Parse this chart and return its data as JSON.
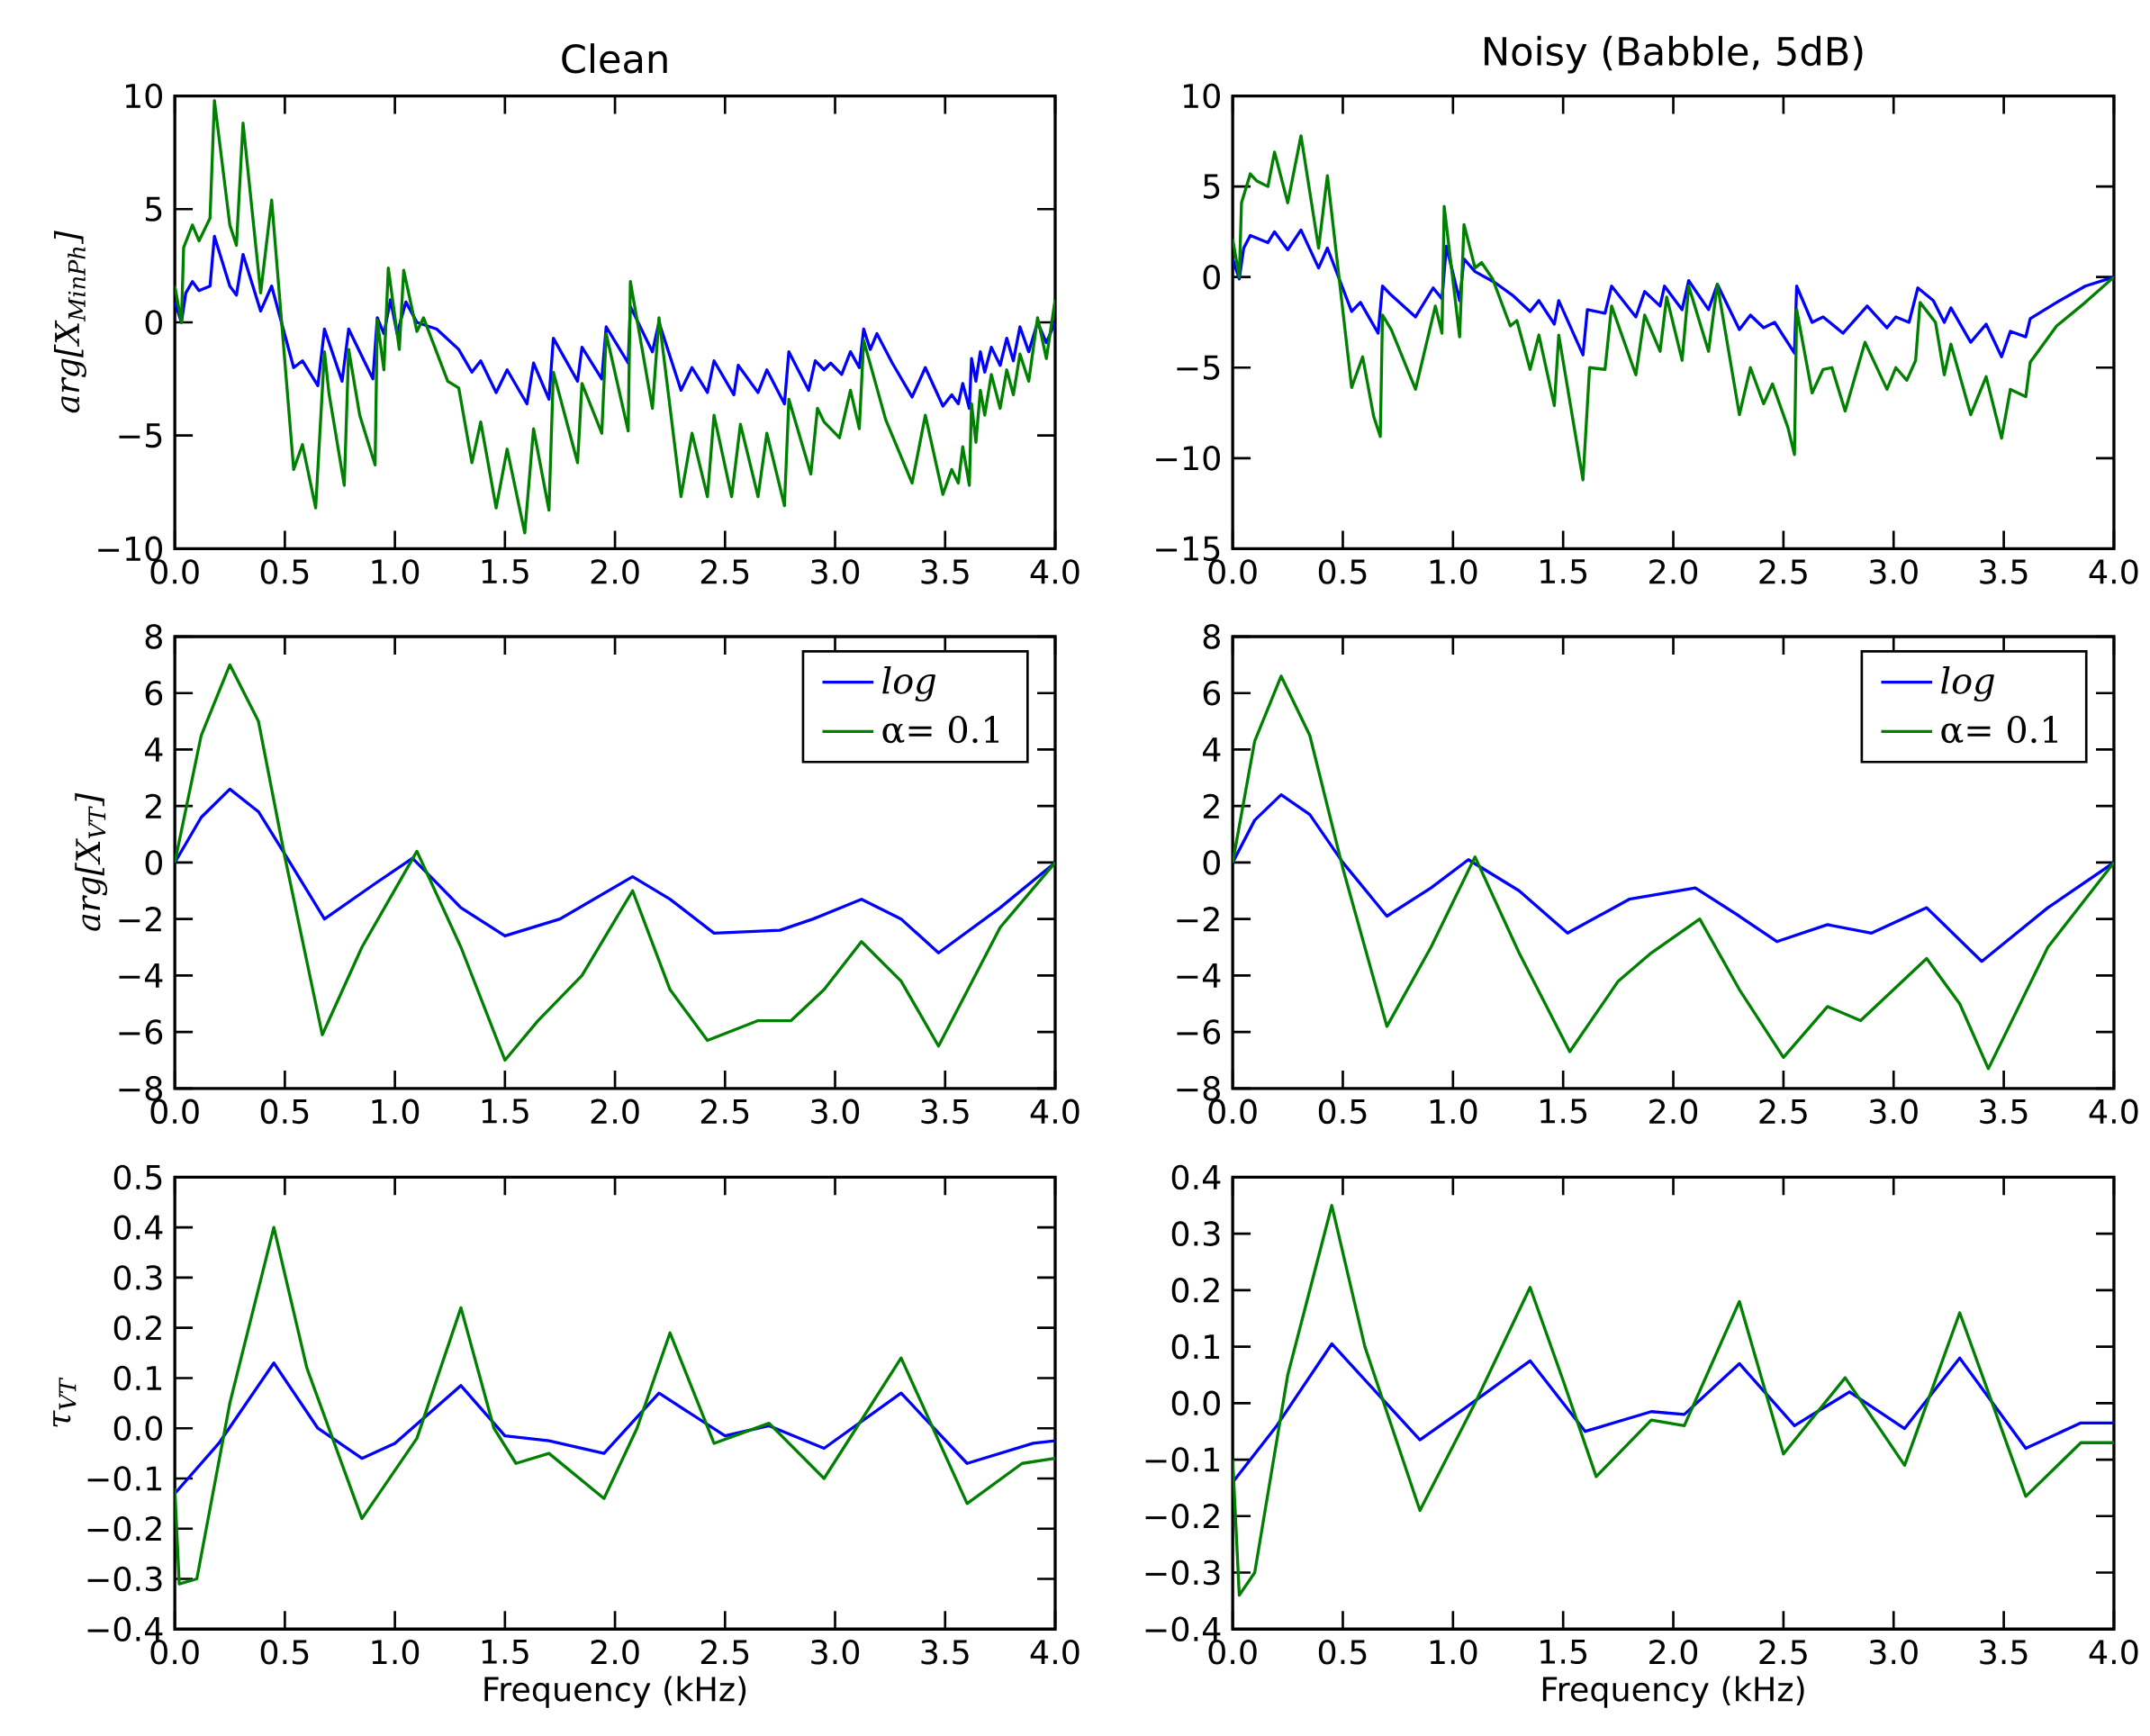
{
  "chart_data": [
    {
      "type": "line",
      "title": "Clean",
      "ylabel": "arg[X$_{MinPh}$]",
      "xlim": [
        0,
        4
      ],
      "ylim": [
        -10,
        10
      ],
      "xticks": [
        {
          "value": 0,
          "label": "0.0"
        },
        {
          "value": 0.5,
          "label": "0.5"
        },
        {
          "value": 1,
          "label": "1.0"
        },
        {
          "value": 1.5,
          "label": "1.5"
        },
        {
          "value": 2,
          "label": "2.0"
        },
        {
          "value": 2.5,
          "label": "2.5"
        },
        {
          "value": 3,
          "label": "3.0"
        },
        {
          "value": 3.5,
          "label": "3.5"
        },
        {
          "value": 4,
          "label": "4.0"
        }
      ],
      "yticks": [
        {
          "value": -10,
          "label": "−10"
        },
        {
          "value": -5,
          "label": "−5"
        },
        {
          "value": 0,
          "label": "0"
        },
        {
          "value": 5,
          "label": "5"
        },
        {
          "value": 10,
          "label": "10"
        }
      ],
      "series": [
        {
          "color": "#0000ff",
          "x": [
            0,
            0.03,
            0.05,
            0.08,
            0.11,
            0.16,
            0.18,
            0.25,
            0.28,
            0.31,
            0.39,
            0.44,
            0.54,
            0.58,
            0.65,
            0.68,
            0.76,
            0.79,
            0.9,
            0.92,
            0.95,
            0.98,
            1.01,
            1.05,
            1.1,
            1.19,
            1.29,
            1.35,
            1.39,
            1.46,
            1.51,
            1.6,
            1.63,
            1.7,
            1.72,
            1.83,
            1.85,
            1.94,
            1.96,
            2.06,
            2.07,
            2.17,
            2.2,
            2.3,
            2.35,
            2.42,
            2.45,
            2.54,
            2.56,
            2.65,
            2.69,
            2.77,
            2.79,
            2.88,
            2.91,
            2.95,
            2.98,
            3.03,
            3.07,
            3.11,
            3.13,
            3.16,
            3.19,
            3.26,
            3.35,
            3.41,
            3.49,
            3.53,
            3.56,
            3.58,
            3.61,
            3.62,
            3.64,
            3.66,
            3.68,
            3.71,
            3.75,
            3.78,
            3.81,
            3.84,
            3.88,
            3.92,
            3.96,
            4.0
          ],
          "values": [
            0.9,
            0,
            1.3,
            1.8,
            1.4,
            1.6,
            3.8,
            1.6,
            1.2,
            3.0,
            0.5,
            1.6,
            -2.0,
            -1.7,
            -2.8,
            -0.3,
            -2.6,
            -0.3,
            -2.5,
            0.2,
            -0.5,
            1.0,
            -0.5,
            0.9,
            0,
            -0.3,
            -1.2,
            -2.2,
            -1.7,
            -3.1,
            -2.1,
            -3.6,
            -1.8,
            -3.4,
            -0.7,
            -2.6,
            -1.1,
            -2.5,
            -0.2,
            -1.8,
            0.7,
            -1.3,
            0,
            -3.0,
            -2.0,
            -3.1,
            -1.7,
            -3.2,
            -1.9,
            -3.1,
            -2.1,
            -3.6,
            -1.3,
            -3.0,
            -1.7,
            -2.1,
            -1.8,
            -2.3,
            -1.3,
            -2.0,
            -0.3,
            -1.2,
            -0.5,
            -1.8,
            -3.3,
            -2.0,
            -3.7,
            -3.2,
            -3.6,
            -2.7,
            -3.8,
            -1.6,
            -2.6,
            -1.3,
            -2.2,
            -1.1,
            -1.9,
            -0.7,
            -1.7,
            -0.2,
            -1.3,
            0,
            -0.9,
            0
          ]
        },
        {
          "color": "#008000",
          "x": [
            0,
            0.03,
            0.04,
            0.08,
            0.11,
            0.14,
            0.16,
            0.18,
            0.25,
            0.28,
            0.31,
            0.39,
            0.44,
            0.54,
            0.58,
            0.64,
            0.68,
            0.7,
            0.77,
            0.79,
            0.84,
            0.91,
            0.92,
            0.95,
            0.97,
            1.02,
            1.04,
            1.1,
            1.13,
            1.24,
            1.29,
            1.35,
            1.39,
            1.46,
            1.51,
            1.59,
            1.63,
            1.7,
            1.72,
            1.83,
            1.85,
            1.94,
            1.96,
            2.06,
            2.07,
            2.17,
            2.2,
            2.3,
            2.35,
            2.42,
            2.45,
            2.53,
            2.57,
            2.65,
            2.69,
            2.77,
            2.79,
            2.89,
            2.92,
            2.95,
            3.02,
            3.07,
            3.11,
            3.13,
            3.23,
            3.35,
            3.41,
            3.49,
            3.53,
            3.56,
            3.58,
            3.61,
            3.62,
            3.64,
            3.66,
            3.68,
            3.71,
            3.75,
            3.78,
            3.81,
            3.84,
            3.88,
            3.92,
            3.96,
            4.0
          ],
          "values": [
            1.6,
            0,
            3.3,
            4.3,
            3.6,
            4.2,
            4.6,
            9.8,
            4.3,
            3.4,
            8.8,
            1.3,
            5.4,
            -6.5,
            -5.4,
            -8.2,
            -1.3,
            -3.1,
            -7.2,
            -1.2,
            -4.1,
            -6.3,
            0.1,
            -2.1,
            2.4,
            -1.2,
            2.3,
            -0.4,
            0.2,
            -2.6,
            -2.9,
            -6.2,
            -4.4,
            -8.2,
            -5.6,
            -9.3,
            -4.7,
            -8.3,
            -2.2,
            -6.2,
            -2.7,
            -4.9,
            -0.5,
            -4.8,
            1.8,
            -3.8,
            0.2,
            -7.7,
            -4.9,
            -7.7,
            -4.1,
            -7.7,
            -4.5,
            -7.7,
            -4.9,
            -8.1,
            -3.4,
            -6.7,
            -3.8,
            -4.4,
            -5.1,
            -3.0,
            -4.7,
            -0.8,
            -4.3,
            -7.1,
            -4.1,
            -7.6,
            -6.5,
            -7.1,
            -5.5,
            -7.2,
            -3.6,
            -5.3,
            -3.0,
            -4.1,
            -2.3,
            -3.8,
            -2.1,
            -3.2,
            -1.4,
            -2.6,
            0.2,
            -1.6,
            1.0
          ]
        }
      ]
    },
    {
      "type": "line",
      "title": "Noisy (Babble, 5dB)",
      "xlim": [
        0,
        4
      ],
      "ylim": [
        -15,
        10
      ],
      "xticks": [
        {
          "value": 0,
          "label": "0.0"
        },
        {
          "value": 0.5,
          "label": "0.5"
        },
        {
          "value": 1,
          "label": "1.0"
        },
        {
          "value": 1.5,
          "label": "1.5"
        },
        {
          "value": 2,
          "label": "2.0"
        },
        {
          "value": 2.5,
          "label": "2.5"
        },
        {
          "value": 3,
          "label": "3.0"
        },
        {
          "value": 3.5,
          "label": "3.5"
        },
        {
          "value": 4,
          "label": "4.0"
        }
      ],
      "yticks": [
        {
          "value": -15,
          "label": "−15"
        },
        {
          "value": -10,
          "label": "−10"
        },
        {
          "value": -5,
          "label": "−5"
        },
        {
          "value": 0,
          "label": "0"
        },
        {
          "value": 5,
          "label": "5"
        },
        {
          "value": 10,
          "label": "10"
        }
      ],
      "series": [
        {
          "color": "#0000ff",
          "x": [
            0,
            0.03,
            0.05,
            0.08,
            0.12,
            0.16,
            0.19,
            0.25,
            0.31,
            0.39,
            0.43,
            0.54,
            0.58,
            0.66,
            0.68,
            0.72,
            0.83,
            0.91,
            0.95,
            0.97,
            1.03,
            1.05,
            1.1,
            1.19,
            1.27,
            1.35,
            1.39,
            1.46,
            1.48,
            1.59,
            1.61,
            1.69,
            1.72,
            1.83,
            1.87,
            1.94,
            1.96,
            2.04,
            2.07,
            2.16,
            2.2,
            2.3,
            2.35,
            2.41,
            2.46,
            2.55,
            2.56,
            2.63,
            2.68,
            2.77,
            2.88,
            2.97,
            3.01,
            3.07,
            3.11,
            3.18,
            3.23,
            3.26,
            3.35,
            3.42,
            3.49,
            3.53,
            3.6,
            3.62,
            3.74,
            3.87,
            4.0
          ],
          "values": [
            1.0,
            -0.1,
            1.6,
            2.3,
            2.1,
            1.9,
            2.5,
            1.5,
            2.6,
            0.5,
            1.6,
            -1.9,
            -1.4,
            -3.1,
            -0.5,
            -1.0,
            -2.2,
            -0.6,
            -1.2,
            1.7,
            -1.3,
            1.0,
            0.3,
            -0.3,
            -1.0,
            -1.9,
            -1.3,
            -2.6,
            -1.3,
            -4.3,
            -1.8,
            -2.0,
            -0.5,
            -2.2,
            -0.8,
            -1.6,
            -0.5,
            -1.8,
            -0.2,
            -1.8,
            -0.4,
            -2.9,
            -2.1,
            -2.8,
            -2.5,
            -4.2,
            -0.5,
            -2.5,
            -2.2,
            -3.1,
            -1.6,
            -2.8,
            -2.2,
            -2.5,
            -0.6,
            -1.3,
            -2.5,
            -1.7,
            -3.6,
            -2.6,
            -4.4,
            -3.0,
            -3.3,
            -2.3,
            -1.4,
            -0.5,
            0
          ]
        },
        {
          "color": "#008000",
          "x": [
            0,
            0.03,
            0.04,
            0.08,
            0.11,
            0.16,
            0.19,
            0.25,
            0.31,
            0.39,
            0.43,
            0.54,
            0.59,
            0.64,
            0.67,
            0.68,
            0.72,
            0.83,
            0.92,
            0.95,
            0.96,
            1.03,
            1.05,
            1.1,
            1.13,
            1.18,
            1.26,
            1.29,
            1.35,
            1.39,
            1.46,
            1.48,
            1.59,
            1.62,
            1.69,
            1.72,
            1.83,
            1.87,
            1.94,
            1.97,
            2.04,
            2.07,
            2.16,
            2.2,
            2.3,
            2.35,
            2.41,
            2.45,
            2.52,
            2.55,
            2.56,
            2.63,
            2.68,
            2.72,
            2.78,
            2.87,
            2.97,
            3.01,
            3.06,
            3.1,
            3.12,
            3.19,
            3.23,
            3.26,
            3.35,
            3.42,
            3.49,
            3.53,
            3.6,
            3.62,
            3.74,
            3.87,
            4.0
          ],
          "values": [
            2.1,
            0,
            4.1,
            5.7,
            5.3,
            5.0,
            6.9,
            4.1,
            7.8,
            1.6,
            5.6,
            -6.1,
            -4.4,
            -7.7,
            -8.8,
            -2.1,
            -2.9,
            -6.2,
            -1.6,
            -3.1,
            3.9,
            -3.3,
            2.9,
            0.5,
            0.8,
            -0.1,
            -2.7,
            -2.4,
            -5.1,
            -3.2,
            -7.1,
            -3.2,
            -11.2,
            -5.0,
            -5.1,
            -1.6,
            -5.4,
            -2.1,
            -4.1,
            -1.1,
            -4.6,
            -0.5,
            -4.1,
            -0.4,
            -7.6,
            -5.0,
            -7.0,
            -5.9,
            -8.3,
            -9.8,
            -1.8,
            -6.4,
            -5.1,
            -5.0,
            -7.4,
            -3.6,
            -6.2,
            -5.0,
            -5.7,
            -4.6,
            -1.4,
            -2.5,
            -5.4,
            -3.7,
            -7.6,
            -5.5,
            -8.9,
            -6.2,
            -6.6,
            -4.7,
            -2.7,
            -1.4,
            0
          ]
        }
      ]
    },
    {
      "type": "line",
      "ylabel": "arg[X$_{VT}$]",
      "xlim": [
        0,
        4
      ],
      "ylim": [
        -8,
        8
      ],
      "legend": "top right",
      "xticks": [
        {
          "value": 0,
          "label": "0.0"
        },
        {
          "value": 0.5,
          "label": "0.5"
        },
        {
          "value": 1,
          "label": "1.0"
        },
        {
          "value": 1.5,
          "label": "1.5"
        },
        {
          "value": 2,
          "label": "2.0"
        },
        {
          "value": 2.5,
          "label": "2.5"
        },
        {
          "value": 3,
          "label": "3.0"
        },
        {
          "value": 3.5,
          "label": "3.5"
        },
        {
          "value": 4,
          "label": "4.0"
        }
      ],
      "yticks": [
        {
          "value": -8,
          "label": "−8"
        },
        {
          "value": -6,
          "label": "−6"
        },
        {
          "value": -4,
          "label": "−4"
        },
        {
          "value": -2,
          "label": "−2"
        },
        {
          "value": 0,
          "label": "0"
        },
        {
          "value": 2,
          "label": "2"
        },
        {
          "value": 4,
          "label": "4"
        },
        {
          "value": 6,
          "label": "6"
        },
        {
          "value": 8,
          "label": "8"
        }
      ],
      "series": [
        {
          "name": "*log*",
          "color": "#0000ff",
          "x": [
            0,
            0.12,
            0.25,
            0.38,
            0.5,
            0.68,
            0.9,
            1.08,
            1.3,
            1.5,
            1.75,
            2.08,
            2.25,
            2.45,
            2.75,
            2.9,
            3.12,
            3.3,
            3.47,
            3.75,
            4.0
          ],
          "values": [
            0,
            1.6,
            2.6,
            1.8,
            0.3,
            -2.0,
            -0.8,
            0.15,
            -1.6,
            -2.6,
            -2.0,
            -0.5,
            -1.3,
            -2.5,
            -2.4,
            -2.0,
            -1.3,
            -2.0,
            -3.2,
            -1.6,
            0
          ]
        },
        {
          "name": "α= 0.1",
          "color": "#008000",
          "x": [
            0,
            0.12,
            0.25,
            0.38,
            0.5,
            0.67,
            0.85,
            1.1,
            1.3,
            1.5,
            1.65,
            1.85,
            2.08,
            2.25,
            2.42,
            2.65,
            2.8,
            2.95,
            3.12,
            3.3,
            3.47,
            3.75,
            4.0
          ],
          "values": [
            0,
            4.5,
            7.0,
            5.0,
            0.2,
            -6.1,
            -3.0,
            0.4,
            -3.0,
            -7.0,
            -5.6,
            -4.0,
            -1.0,
            -4.5,
            -6.3,
            -5.6,
            -5.6,
            -4.5,
            -2.8,
            -4.2,
            -6.5,
            -2.3,
            0
          ]
        }
      ]
    },
    {
      "type": "line",
      "xlim": [
        0,
        4
      ],
      "ylim": [
        -8,
        8
      ],
      "legend": "top right",
      "xticks": [
        {
          "value": 0,
          "label": "0.0"
        },
        {
          "value": 0.5,
          "label": "0.5"
        },
        {
          "value": 1,
          "label": "1.0"
        },
        {
          "value": 1.5,
          "label": "1.5"
        },
        {
          "value": 2,
          "label": "2.0"
        },
        {
          "value": 2.5,
          "label": "2.5"
        },
        {
          "value": 3,
          "label": "3.0"
        },
        {
          "value": 3.5,
          "label": "3.5"
        },
        {
          "value": 4,
          "label": "4.0"
        }
      ],
      "yticks": [
        {
          "value": -8,
          "label": "−8"
        },
        {
          "value": -6,
          "label": "−6"
        },
        {
          "value": -4,
          "label": "−4"
        },
        {
          "value": -2,
          "label": "−2"
        },
        {
          "value": 0,
          "label": "0"
        },
        {
          "value": 2,
          "label": "2"
        },
        {
          "value": 4,
          "label": "4"
        },
        {
          "value": 6,
          "label": "6"
        },
        {
          "value": 8,
          "label": "8"
        }
      ],
      "series": [
        {
          "name": "*log*",
          "color": "#0000ff",
          "x": [
            0,
            0.1,
            0.22,
            0.35,
            0.5,
            0.7,
            0.9,
            1.07,
            1.3,
            1.52,
            1.8,
            2.1,
            2.3,
            2.47,
            2.7,
            2.9,
            3.15,
            3.4,
            3.7,
            4.0
          ],
          "values": [
            0,
            1.5,
            2.4,
            1.7,
            0.0,
            -1.9,
            -0.9,
            0.1,
            -1.0,
            -2.5,
            -1.3,
            -0.9,
            -1.9,
            -2.8,
            -2.2,
            -2.5,
            -1.6,
            -3.5,
            -1.6,
            0
          ]
        },
        {
          "name": "α= 0.1",
          "color": "#008000",
          "x": [
            0,
            0.1,
            0.22,
            0.35,
            0.5,
            0.7,
            0.9,
            1.1,
            1.3,
            1.53,
            1.75,
            1.9,
            2.12,
            2.3,
            2.5,
            2.7,
            2.85,
            3.0,
            3.15,
            3.3,
            3.43,
            3.7,
            4.0
          ],
          "values": [
            0,
            4.3,
            6.6,
            4.5,
            -0.2,
            -5.8,
            -3.0,
            0.2,
            -3.2,
            -6.7,
            -4.2,
            -3.2,
            -2.0,
            -4.5,
            -6.9,
            -5.1,
            -5.6,
            -4.5,
            -3.4,
            -5.0,
            -7.3,
            -3.0,
            0
          ]
        }
      ]
    },
    {
      "type": "line",
      "ylabel": "τ$_{VT}$",
      "xlabel": "Frequency (kHz)",
      "xlim": [
        0,
        4
      ],
      "ylim": [
        -0.4,
        0.5
      ],
      "xticks": [
        {
          "value": 0,
          "label": "0.0"
        },
        {
          "value": 0.5,
          "label": "0.5"
        },
        {
          "value": 1,
          "label": "1.0"
        },
        {
          "value": 1.5,
          "label": "1.5"
        },
        {
          "value": 2,
          "label": "2.0"
        },
        {
          "value": 2.5,
          "label": "2.5"
        },
        {
          "value": 3,
          "label": "3.0"
        },
        {
          "value": 3.5,
          "label": "3.5"
        },
        {
          "value": 4,
          "label": "4.0"
        }
      ],
      "yticks": [
        {
          "value": -0.4,
          "label": "−0.4"
        },
        {
          "value": -0.3,
          "label": "−0.3"
        },
        {
          "value": -0.2,
          "label": "−0.2"
        },
        {
          "value": -0.1,
          "label": "−0.1"
        },
        {
          "value": 0,
          "label": "0.0"
        },
        {
          "value": 0.1,
          "label": "0.1"
        },
        {
          "value": 0.2,
          "label": "0.2"
        },
        {
          "value": 0.3,
          "label": "0.3"
        },
        {
          "value": 0.4,
          "label": "0.4"
        },
        {
          "value": 0.5,
          "label": "0.5"
        }
      ],
      "series": [
        {
          "color": "#0000ff",
          "x": [
            0,
            0.2,
            0.45,
            0.65,
            0.85,
            1.0,
            1.3,
            1.5,
            1.7,
            1.95,
            2.2,
            2.5,
            2.7,
            2.95,
            3.3,
            3.6,
            3.9,
            4.0
          ],
          "values": [
            -0.13,
            -0.03,
            0.13,
            0.0,
            -0.06,
            -0.03,
            0.085,
            -0.015,
            -0.025,
            -0.05,
            0.07,
            -0.015,
            0.005,
            -0.04,
            0.07,
            -0.07,
            -0.03,
            -0.025
          ]
        },
        {
          "color": "#008000",
          "x": [
            0,
            0.02,
            0.1,
            0.25,
            0.45,
            0.6,
            0.85,
            1.1,
            1.3,
            1.45,
            1.55,
            1.7,
            1.95,
            2.1,
            2.25,
            2.45,
            2.7,
            2.95,
            3.3,
            3.6,
            3.85,
            4.0
          ],
          "values": [
            -0.12,
            -0.31,
            -0.3,
            0.05,
            0.4,
            0.12,
            -0.18,
            -0.02,
            0.24,
            0.0,
            -0.07,
            -0.05,
            -0.14,
            0.0,
            0.19,
            -0.03,
            0.01,
            -0.1,
            0.14,
            -0.15,
            -0.07,
            -0.06
          ]
        }
      ]
    },
    {
      "type": "line",
      "xlabel": "Frequency (kHz)",
      "xlim": [
        0,
        4
      ],
      "ylim": [
        -0.4,
        0.4
      ],
      "xticks": [
        {
          "value": 0,
          "label": "0.0"
        },
        {
          "value": 0.5,
          "label": "0.5"
        },
        {
          "value": 1,
          "label": "1.0"
        },
        {
          "value": 1.5,
          "label": "1.5"
        },
        {
          "value": 2,
          "label": "2.0"
        },
        {
          "value": 2.5,
          "label": "2.5"
        },
        {
          "value": 3,
          "label": "3.0"
        },
        {
          "value": 3.5,
          "label": "3.5"
        },
        {
          "value": 4,
          "label": "4.0"
        }
      ],
      "yticks": [
        {
          "value": -0.4,
          "label": "−0.4"
        },
        {
          "value": -0.3,
          "label": "−0.3"
        },
        {
          "value": -0.2,
          "label": "−0.2"
        },
        {
          "value": -0.1,
          "label": "−0.1"
        },
        {
          "value": 0,
          "label": "0.0"
        },
        {
          "value": 0.1,
          "label": "0.1"
        },
        {
          "value": 0.2,
          "label": "0.2"
        },
        {
          "value": 0.3,
          "label": "0.3"
        },
        {
          "value": 0.4,
          "label": "0.4"
        }
      ],
      "series": [
        {
          "color": "#0000ff",
          "x": [
            0,
            0.2,
            0.45,
            0.65,
            0.85,
            1.05,
            1.35,
            1.6,
            1.9,
            2.05,
            2.3,
            2.55,
            2.8,
            3.05,
            3.3,
            3.6,
            3.85,
            4.0
          ],
          "values": [
            -0.14,
            -0.04,
            0.105,
            0.02,
            -0.065,
            -0.01,
            0.075,
            -0.05,
            -0.015,
            -0.02,
            0.07,
            -0.04,
            0.02,
            -0.045,
            0.08,
            -0.08,
            -0.035,
            -0.035
          ]
        },
        {
          "color": "#008000",
          "x": [
            0,
            0.03,
            0.1,
            0.25,
            0.45,
            0.6,
            0.85,
            1.1,
            1.35,
            1.5,
            1.65,
            1.9,
            2.05,
            2.3,
            2.5,
            2.78,
            3.05,
            3.3,
            3.6,
            3.85,
            4.0
          ],
          "values": [
            -0.1,
            -0.34,
            -0.3,
            0.05,
            0.35,
            0.1,
            -0.19,
            0.0,
            0.205,
            0.04,
            -0.13,
            -0.03,
            -0.04,
            0.18,
            -0.09,
            0.045,
            -0.11,
            0.16,
            -0.165,
            -0.07,
            -0.07
          ]
        }
      ]
    }
  ]
}
